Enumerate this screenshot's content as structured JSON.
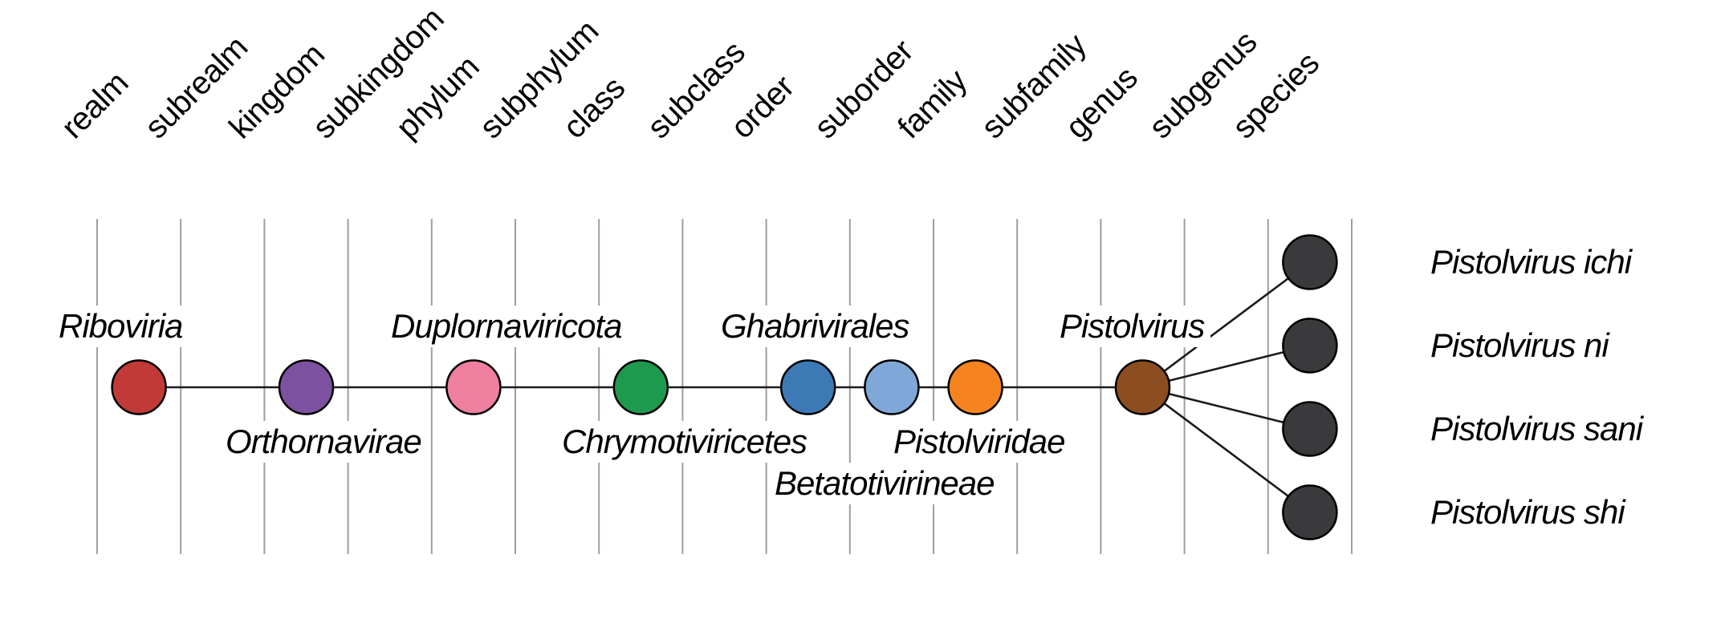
{
  "figure": {
    "description": "Virus taxonomy rank diagram",
    "ranks": [
      "realm",
      "subrealm",
      "kingdom",
      "subkingdom",
      "phylum",
      "subphylum",
      "class",
      "subclass",
      "order",
      "suborder",
      "family",
      "subfamily",
      "genus",
      "subgenus",
      "species"
    ],
    "lineage": [
      {
        "rank": "realm",
        "name": "Riboviria",
        "color": "#c23a38",
        "label_position": "above"
      },
      {
        "rank": "kingdom",
        "name": "Orthornavirae",
        "color": "#7c52a0",
        "label_position": "below"
      },
      {
        "rank": "phylum",
        "name": "Duplornaviricota",
        "color": "#ef7f9e",
        "label_position": "above"
      },
      {
        "rank": "class",
        "name": "Chrymotiviricetes",
        "color": "#1d9a4e",
        "label_position": "below"
      },
      {
        "rank": "order",
        "name": "Ghabrivirales",
        "color": "#3d7ab5",
        "label_position": "above"
      },
      {
        "rank": "suborder",
        "name": "Betatotivirineae",
        "color": "#7fa8d9",
        "label_position": "below-2"
      },
      {
        "rank": "family",
        "name": "Pistolviridae",
        "color": "#f5831f",
        "label_position": "below"
      },
      {
        "rank": "genus",
        "name": "Pistolvirus",
        "color": "#8c4d21",
        "label_position": "above"
      }
    ],
    "species": {
      "rank": "species",
      "node_color": "#3a3a3c",
      "items": [
        "Pistolvirus ichi",
        "Pistolvirus ni",
        "Pistolvirus sani",
        "Pistolvirus shi"
      ]
    },
    "colors": {
      "grid_line": "#9e9e9e",
      "connector": "#1a1a1a",
      "node_outline": "#000000",
      "text": "#000000",
      "background": "#ffffff"
    }
  }
}
